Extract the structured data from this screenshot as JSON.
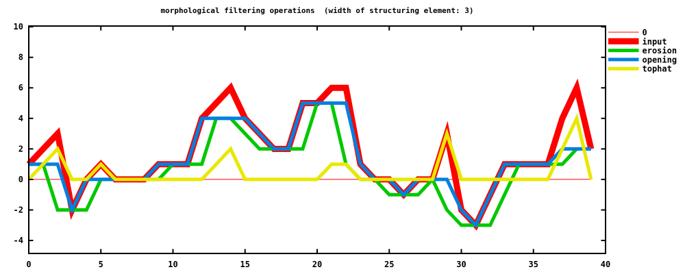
{
  "figure": {
    "background": "#ffffff",
    "frame_color": "#000000"
  },
  "chart_data": {
    "type": "line",
    "title": "morphological filtering operations  (width of structuring element: 3)",
    "xlabel": "",
    "ylabel": "",
    "grid": false,
    "frame": true,
    "ticks_mirrored": true,
    "xlim": [
      0,
      40
    ],
    "ylim": [
      -4.85,
      10.05
    ],
    "xticks": [
      0,
      5,
      10,
      15,
      20,
      25,
      30,
      35,
      40
    ],
    "yticks": [
      -4,
      -2,
      0,
      2,
      4,
      6,
      8,
      10
    ],
    "legend": {
      "position": "outside-right-top",
      "entries": [
        "0",
        "input",
        "erosion",
        "opening",
        "tophat"
      ]
    },
    "x": [
      0,
      1,
      2,
      3,
      4,
      5,
      6,
      7,
      8,
      9,
      10,
      11,
      12,
      13,
      14,
      15,
      16,
      17,
      18,
      19,
      20,
      21,
      22,
      23,
      24,
      25,
      26,
      27,
      28,
      29,
      30,
      31,
      32,
      33,
      34,
      35,
      36,
      37,
      38,
      39
    ],
    "series": [
      {
        "name": "0",
        "color": "#ff0000",
        "line_width": 1,
        "values": [
          0,
          0,
          0,
          0,
          0,
          0,
          0,
          0,
          0,
          0,
          0,
          0,
          0,
          0,
          0,
          0,
          0,
          0,
          0,
          0,
          0,
          0,
          0,
          0,
          0,
          0,
          0,
          0,
          0,
          0,
          0,
          0,
          0,
          0,
          0,
          0,
          0,
          0,
          0,
          0
        ]
      },
      {
        "name": "input",
        "color": "#ff0000",
        "line_width": 9,
        "values": [
          1,
          2,
          3,
          -2,
          0,
          1,
          0,
          0,
          0,
          1,
          1,
          1,
          4,
          5,
          6,
          4,
          3,
          2,
          2,
          5,
          5,
          6,
          6,
          1,
          0,
          0,
          -1,
          0,
          0,
          3,
          -2,
          -3,
          -1,
          1,
          1,
          1,
          1,
          4,
          6,
          2
        ]
      },
      {
        "name": "erosion",
        "color": "#00c800",
        "line_width": 5,
        "values": [
          1,
          1,
          -2,
          -2,
          -2,
          0,
          0,
          0,
          0,
          0,
          1,
          1,
          1,
          4,
          4,
          3,
          2,
          2,
          2,
          2,
          5,
          5,
          1,
          0,
          0,
          -1,
          -1,
          -1,
          0,
          -2,
          -3,
          -3,
          -3,
          -1,
          1,
          1,
          1,
          1,
          2,
          2
        ]
      },
      {
        "name": "opening",
        "color": "#0080e0",
        "line_width": 5,
        "values": [
          1,
          1,
          1,
          -2,
          0,
          0,
          0,
          0,
          0,
          1,
          1,
          1,
          4,
          4,
          4,
          4,
          3,
          2,
          2,
          5,
          5,
          5,
          5,
          1,
          0,
          0,
          -1,
          0,
          0,
          0,
          -2,
          -3,
          -1,
          1,
          1,
          1,
          1,
          2,
          2,
          2
        ]
      },
      {
        "name": "tophat",
        "color": "#e8e800",
        "line_width": 5,
        "values": [
          0,
          1,
          2,
          0,
          0,
          1,
          0,
          0,
          0,
          0,
          0,
          0,
          0,
          1,
          2,
          0,
          0,
          0,
          0,
          0,
          0,
          1,
          1,
          0,
          0,
          0,
          0,
          0,
          0,
          3,
          0,
          0,
          0,
          0,
          0,
          0,
          0,
          2,
          4,
          0
        ]
      }
    ]
  }
}
